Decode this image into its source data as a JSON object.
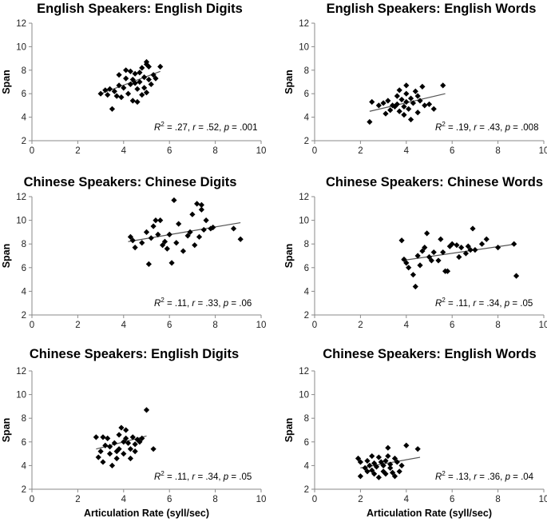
{
  "chart_data": [
    {
      "type": "scatter",
      "title": "English Speakers: English Digits",
      "xlabel": "",
      "ylabel": "Span",
      "xlim": [
        0,
        10
      ],
      "ylim": [
        2,
        12
      ],
      "xticks": [
        "0",
        "2",
        "4",
        "6",
        "8",
        "10"
      ],
      "yticks": [
        "2",
        "4",
        "6",
        "8",
        "10",
        "12"
      ],
      "stats": {
        "r2": "= .27, ",
        "r": "= .52, ",
        "p": "= .001"
      },
      "trendline": {
        "x": [
          3.0,
          5.6
        ],
        "y": [
          6.0,
          7.9
        ]
      },
      "points": [
        [
          3.0,
          6.0
        ],
        [
          3.2,
          6.3
        ],
        [
          3.3,
          5.9
        ],
        [
          3.4,
          6.4
        ],
        [
          3.5,
          4.7
        ],
        [
          3.6,
          6.2
        ],
        [
          3.7,
          5.8
        ],
        [
          3.8,
          6.7
        ],
        [
          3.8,
          7.6
        ],
        [
          3.9,
          5.7
        ],
        [
          4.0,
          6.5
        ],
        [
          4.1,
          7.3
        ],
        [
          4.1,
          8.0
        ],
        [
          4.2,
          6.0
        ],
        [
          4.3,
          6.8
        ],
        [
          4.3,
          7.9
        ],
        [
          4.4,
          5.4
        ],
        [
          4.4,
          7.2
        ],
        [
          4.5,
          6.9
        ],
        [
          4.5,
          7.7
        ],
        [
          4.6,
          5.3
        ],
        [
          4.6,
          6.4
        ],
        [
          4.7,
          7.0
        ],
        [
          4.7,
          7.8
        ],
        [
          4.8,
          5.9
        ],
        [
          4.8,
          8.2
        ],
        [
          4.9,
          6.5
        ],
        [
          4.9,
          7.4
        ],
        [
          5.0,
          6.1
        ],
        [
          5.0,
          8.5
        ],
        [
          5.0,
          8.7
        ],
        [
          5.1,
          7.2
        ],
        [
          5.1,
          8.3
        ],
        [
          5.2,
          6.8
        ],
        [
          5.3,
          7.6
        ],
        [
          5.4,
          7.3
        ],
        [
          5.6,
          8.3
        ]
      ]
    },
    {
      "type": "scatter",
      "title": "English Speakers: English Words",
      "xlabel": "",
      "ylabel": "Span",
      "xlim": [
        0,
        10
      ],
      "ylim": [
        2,
        12
      ],
      "xticks": [
        "0",
        "2",
        "4",
        "6",
        "8",
        "10"
      ],
      "yticks": [
        "2",
        "4",
        "6",
        "8",
        "10",
        "12"
      ],
      "stats": {
        "r2": "= .19, ",
        "r": "= .43, ",
        "p": "= .008"
      },
      "trendline": {
        "x": [
          2.4,
          5.7
        ],
        "y": [
          4.5,
          6.0
        ]
      },
      "points": [
        [
          2.4,
          3.6
        ],
        [
          2.5,
          5.3
        ],
        [
          2.8,
          5.0
        ],
        [
          3.0,
          5.2
        ],
        [
          3.1,
          4.3
        ],
        [
          3.2,
          5.4
        ],
        [
          3.3,
          4.6
        ],
        [
          3.4,
          5.0
        ],
        [
          3.5,
          4.9
        ],
        [
          3.6,
          5.1
        ],
        [
          3.6,
          5.8
        ],
        [
          3.7,
          4.5
        ],
        [
          3.7,
          6.3
        ],
        [
          3.8,
          5.5
        ],
        [
          3.9,
          4.2
        ],
        [
          3.9,
          4.9
        ],
        [
          4.0,
          5.3
        ],
        [
          4.0,
          6.0
        ],
        [
          4.0,
          6.7
        ],
        [
          4.1,
          4.7
        ],
        [
          4.2,
          5.6
        ],
        [
          4.2,
          3.8
        ],
        [
          4.3,
          5.2
        ],
        [
          4.4,
          6.2
        ],
        [
          4.5,
          4.4
        ],
        [
          4.5,
          5.8
        ],
        [
          4.6,
          5.4
        ],
        [
          4.7,
          6.6
        ],
        [
          4.8,
          5.0
        ],
        [
          5.0,
          5.1
        ],
        [
          5.2,
          4.7
        ],
        [
          5.6,
          6.7
        ]
      ]
    },
    {
      "type": "scatter",
      "title": "Chinese Speakers: Chinese Digits",
      "xlabel": "",
      "ylabel": "Span",
      "xlim": [
        0,
        10
      ],
      "ylim": [
        2,
        12
      ],
      "xticks": [
        "0",
        "2",
        "4",
        "6",
        "8",
        "10"
      ],
      "yticks": [
        "2",
        "4",
        "6",
        "8",
        "10",
        "12"
      ],
      "stats": {
        "r2": "= .11, ",
        "r": "= .33, ",
        "p": "= .06"
      },
      "trendline": {
        "x": [
          4.2,
          9.1
        ],
        "y": [
          8.2,
          9.8
        ]
      },
      "points": [
        [
          4.3,
          8.6
        ],
        [
          4.4,
          8.3
        ],
        [
          4.5,
          7.7
        ],
        [
          4.8,
          8.1
        ],
        [
          5.0,
          9.0
        ],
        [
          5.1,
          6.3
        ],
        [
          5.2,
          8.5
        ],
        [
          5.3,
          9.5
        ],
        [
          5.4,
          10.0
        ],
        [
          5.5,
          8.8
        ],
        [
          5.6,
          10.0
        ],
        [
          5.7,
          7.9
        ],
        [
          5.8,
          8.2
        ],
        [
          5.9,
          7.6
        ],
        [
          6.0,
          8.8
        ],
        [
          6.1,
          6.4
        ],
        [
          6.2,
          11.7
        ],
        [
          6.3,
          8.1
        ],
        [
          6.4,
          9.7
        ],
        [
          6.6,
          7.4
        ],
        [
          6.8,
          8.7
        ],
        [
          6.9,
          9.0
        ],
        [
          7.0,
          10.5
        ],
        [
          7.1,
          7.9
        ],
        [
          7.2,
          11.4
        ],
        [
          7.3,
          8.6
        ],
        [
          7.4,
          10.9
        ],
        [
          7.4,
          11.3
        ],
        [
          7.5,
          9.2
        ],
        [
          7.6,
          10.0
        ],
        [
          7.8,
          9.3
        ],
        [
          7.9,
          9.4
        ],
        [
          8.8,
          9.3
        ],
        [
          9.1,
          8.4
        ]
      ]
    },
    {
      "type": "scatter",
      "title": "Chinese Speakers: Chinese Words",
      "xlabel": "",
      "ylabel": "Span",
      "xlim": [
        0,
        10
      ],
      "ylim": [
        2,
        12
      ],
      "xticks": [
        "0",
        "2",
        "4",
        "6",
        "8",
        "10"
      ],
      "yticks": [
        "2",
        "4",
        "6",
        "8",
        "10",
        "12"
      ],
      "stats": {
        "r2": "= .11, ",
        "r": "= .34, ",
        "p": "= .05"
      },
      "trendline": {
        "x": [
          3.8,
          8.8
        ],
        "y": [
          6.6,
          8.0
        ]
      },
      "points": [
        [
          3.8,
          8.3
        ],
        [
          3.9,
          6.7
        ],
        [
          4.0,
          6.4
        ],
        [
          4.1,
          6.0
        ],
        [
          4.3,
          5.4
        ],
        [
          4.4,
          4.4
        ],
        [
          4.5,
          7.0
        ],
        [
          4.6,
          6.2
        ],
        [
          4.7,
          7.4
        ],
        [
          4.8,
          7.7
        ],
        [
          4.9,
          8.9
        ],
        [
          5.0,
          6.9
        ],
        [
          5.1,
          6.6
        ],
        [
          5.2,
          7.3
        ],
        [
          5.4,
          6.6
        ],
        [
          5.5,
          8.4
        ],
        [
          5.6,
          7.3
        ],
        [
          5.7,
          5.7
        ],
        [
          5.8,
          5.7
        ],
        [
          5.9,
          7.8
        ],
        [
          6.0,
          8.0
        ],
        [
          6.2,
          7.9
        ],
        [
          6.3,
          6.9
        ],
        [
          6.4,
          7.7
        ],
        [
          6.6,
          7.2
        ],
        [
          6.7,
          7.8
        ],
        [
          6.8,
          7.5
        ],
        [
          6.9,
          9.3
        ],
        [
          7.0,
          7.5
        ],
        [
          7.3,
          8.0
        ],
        [
          7.5,
          8.4
        ],
        [
          8.0,
          7.7
        ],
        [
          8.7,
          8.0
        ],
        [
          8.8,
          5.3
        ]
      ]
    },
    {
      "type": "scatter",
      "title": "Chinese Speakers: English Digits",
      "xlabel": "Articulation Rate (syll/sec)",
      "ylabel": "Span",
      "xlim": [
        0,
        10
      ],
      "ylim": [
        2,
        12
      ],
      "xticks": [
        "0",
        "2",
        "4",
        "6",
        "8",
        "10"
      ],
      "yticks": [
        "2",
        "4",
        "6",
        "8",
        "10",
        "12"
      ],
      "stats": {
        "r2": "= .11, ",
        "r": "= .34, ",
        "p": "= .05"
      },
      "trendline": {
        "x": [
          2.8,
          5.0
        ],
        "y": [
          5.4,
          6.5
        ]
      },
      "points": [
        [
          2.8,
          6.4
        ],
        [
          2.9,
          4.7
        ],
        [
          3.0,
          5.2
        ],
        [
          3.1,
          6.4
        ],
        [
          3.1,
          4.3
        ],
        [
          3.2,
          5.7
        ],
        [
          3.3,
          6.3
        ],
        [
          3.4,
          5.0
        ],
        [
          3.4,
          5.6
        ],
        [
          3.5,
          4.0
        ],
        [
          3.6,
          5.9
        ],
        [
          3.7,
          5.2
        ],
        [
          3.7,
          4.6
        ],
        [
          3.8,
          6.6
        ],
        [
          3.8,
          5.4
        ],
        [
          3.9,
          7.2
        ],
        [
          4.0,
          6.0
        ],
        [
          4.0,
          5.0
        ],
        [
          4.1,
          7.0
        ],
        [
          4.1,
          6.3
        ],
        [
          4.2,
          5.9
        ],
        [
          4.3,
          4.6
        ],
        [
          4.3,
          5.4
        ],
        [
          4.4,
          6.4
        ],
        [
          4.5,
          5.8
        ],
        [
          4.5,
          5.2
        ],
        [
          4.6,
          6.2
        ],
        [
          4.7,
          6.0
        ],
        [
          4.8,
          6.3
        ],
        [
          5.0,
          8.7
        ],
        [
          5.3,
          5.4
        ]
      ]
    },
    {
      "type": "scatter",
      "title": "Chinese Speakers: English Words",
      "xlabel": "Articulation Rate (syll/sec)",
      "ylabel": "Span",
      "xlim": [
        0,
        10
      ],
      "ylim": [
        2,
        12
      ],
      "xticks": [
        "0",
        "2",
        "4",
        "6",
        "8",
        "10"
      ],
      "yticks": [
        "2",
        "4",
        "6",
        "8",
        "10",
        "12"
      ],
      "stats": {
        "r2": "= .13, ",
        "r": "= .36, ",
        "p": "= .04"
      },
      "trendline": {
        "x": [
          2.0,
          4.6
        ],
        "y": [
          3.8,
          4.7
        ]
      },
      "points": [
        [
          1.9,
          4.6
        ],
        [
          2.0,
          4.3
        ],
        [
          2.0,
          3.1
        ],
        [
          2.2,
          3.8
        ],
        [
          2.3,
          3.5
        ],
        [
          2.3,
          4.4
        ],
        [
          2.4,
          4.0
        ],
        [
          2.5,
          3.6
        ],
        [
          2.5,
          4.8
        ],
        [
          2.6,
          3.3
        ],
        [
          2.6,
          4.2
        ],
        [
          2.7,
          3.9
        ],
        [
          2.8,
          4.7
        ],
        [
          2.8,
          3.0
        ],
        [
          2.9,
          4.3
        ],
        [
          3.0,
          3.5
        ],
        [
          3.0,
          4.0
        ],
        [
          3.1,
          4.4
        ],
        [
          3.1,
          3.3
        ],
        [
          3.2,
          4.8
        ],
        [
          3.2,
          5.5
        ],
        [
          3.3,
          3.8
        ],
        [
          3.3,
          4.1
        ],
        [
          3.4,
          3.4
        ],
        [
          3.5,
          4.6
        ],
        [
          3.5,
          3.1
        ],
        [
          3.6,
          4.3
        ],
        [
          3.7,
          3.5
        ],
        [
          3.8,
          4.0
        ],
        [
          4.0,
          5.7
        ],
        [
          4.5,
          5.4
        ]
      ]
    }
  ]
}
